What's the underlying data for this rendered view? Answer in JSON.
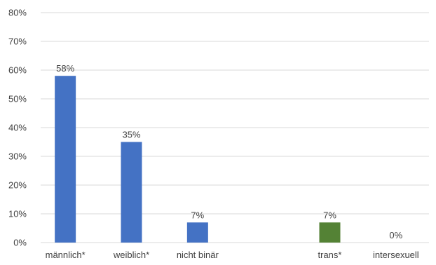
{
  "chart_data": {
    "type": "bar",
    "title": "",
    "xlabel": "",
    "ylabel": "",
    "categories": [
      "männlich*",
      "weiblich*",
      "nicht binär",
      "",
      "trans*",
      "intersexuell"
    ],
    "values": [
      58,
      35,
      7,
      null,
      7,
      0
    ],
    "value_labels": [
      "58%",
      "35%",
      "7%",
      "",
      "7%",
      "0%"
    ],
    "bar_colors": [
      "#4472c4",
      "#4472c4",
      "#4472c4",
      "#4472c4",
      "#548235",
      "#548235"
    ],
    "ylim": [
      0,
      80
    ],
    "yticks": [
      0,
      10,
      20,
      30,
      40,
      50,
      60,
      70,
      80
    ],
    "ytick_labels": [
      "0%",
      "10%",
      "20%",
      "30%",
      "40%",
      "50%",
      "60%",
      "70%",
      "80%"
    ],
    "grid": true,
    "legend": "none"
  }
}
